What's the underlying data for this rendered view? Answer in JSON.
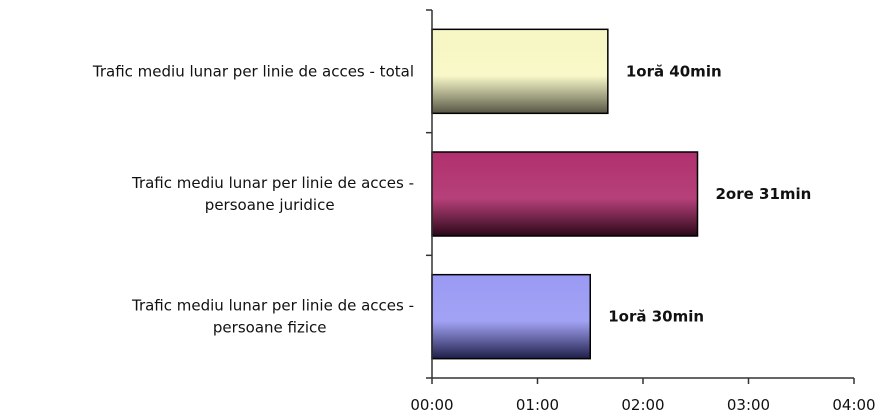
{
  "chart_data": {
    "type": "bar",
    "orientation": "horizontal",
    "title": "",
    "xlabel": "",
    "ylabel": "",
    "xlim_minutes": [
      0,
      240
    ],
    "grid": false,
    "legend": "none",
    "x_tick_labels": [
      "00:00",
      "01:00",
      "02:00",
      "03:00",
      "04:00"
    ],
    "categories": [
      {
        "lines": [
          "Trafic mediu lunar per linie de acces - total"
        ],
        "value_minutes": 100,
        "data_label": "1oră 40min",
        "color_light": "#f7f7c4",
        "color_dark": "#555544"
      },
      {
        "lines": [
          "Trafic mediu lunar per linie de acces -",
          "persoane juridice"
        ],
        "value_minutes": 151,
        "data_label": "2ore 31min",
        "color_light": "#b0306e",
        "color_dark": "#2a0818"
      },
      {
        "lines": [
          "Trafic mediu lunar per linie de acces -",
          "persoane fizice"
        ],
        "value_minutes": 90,
        "data_label": "1oră 30min",
        "color_light": "#9a9af4",
        "color_dark": "#1e1e48"
      }
    ]
  }
}
